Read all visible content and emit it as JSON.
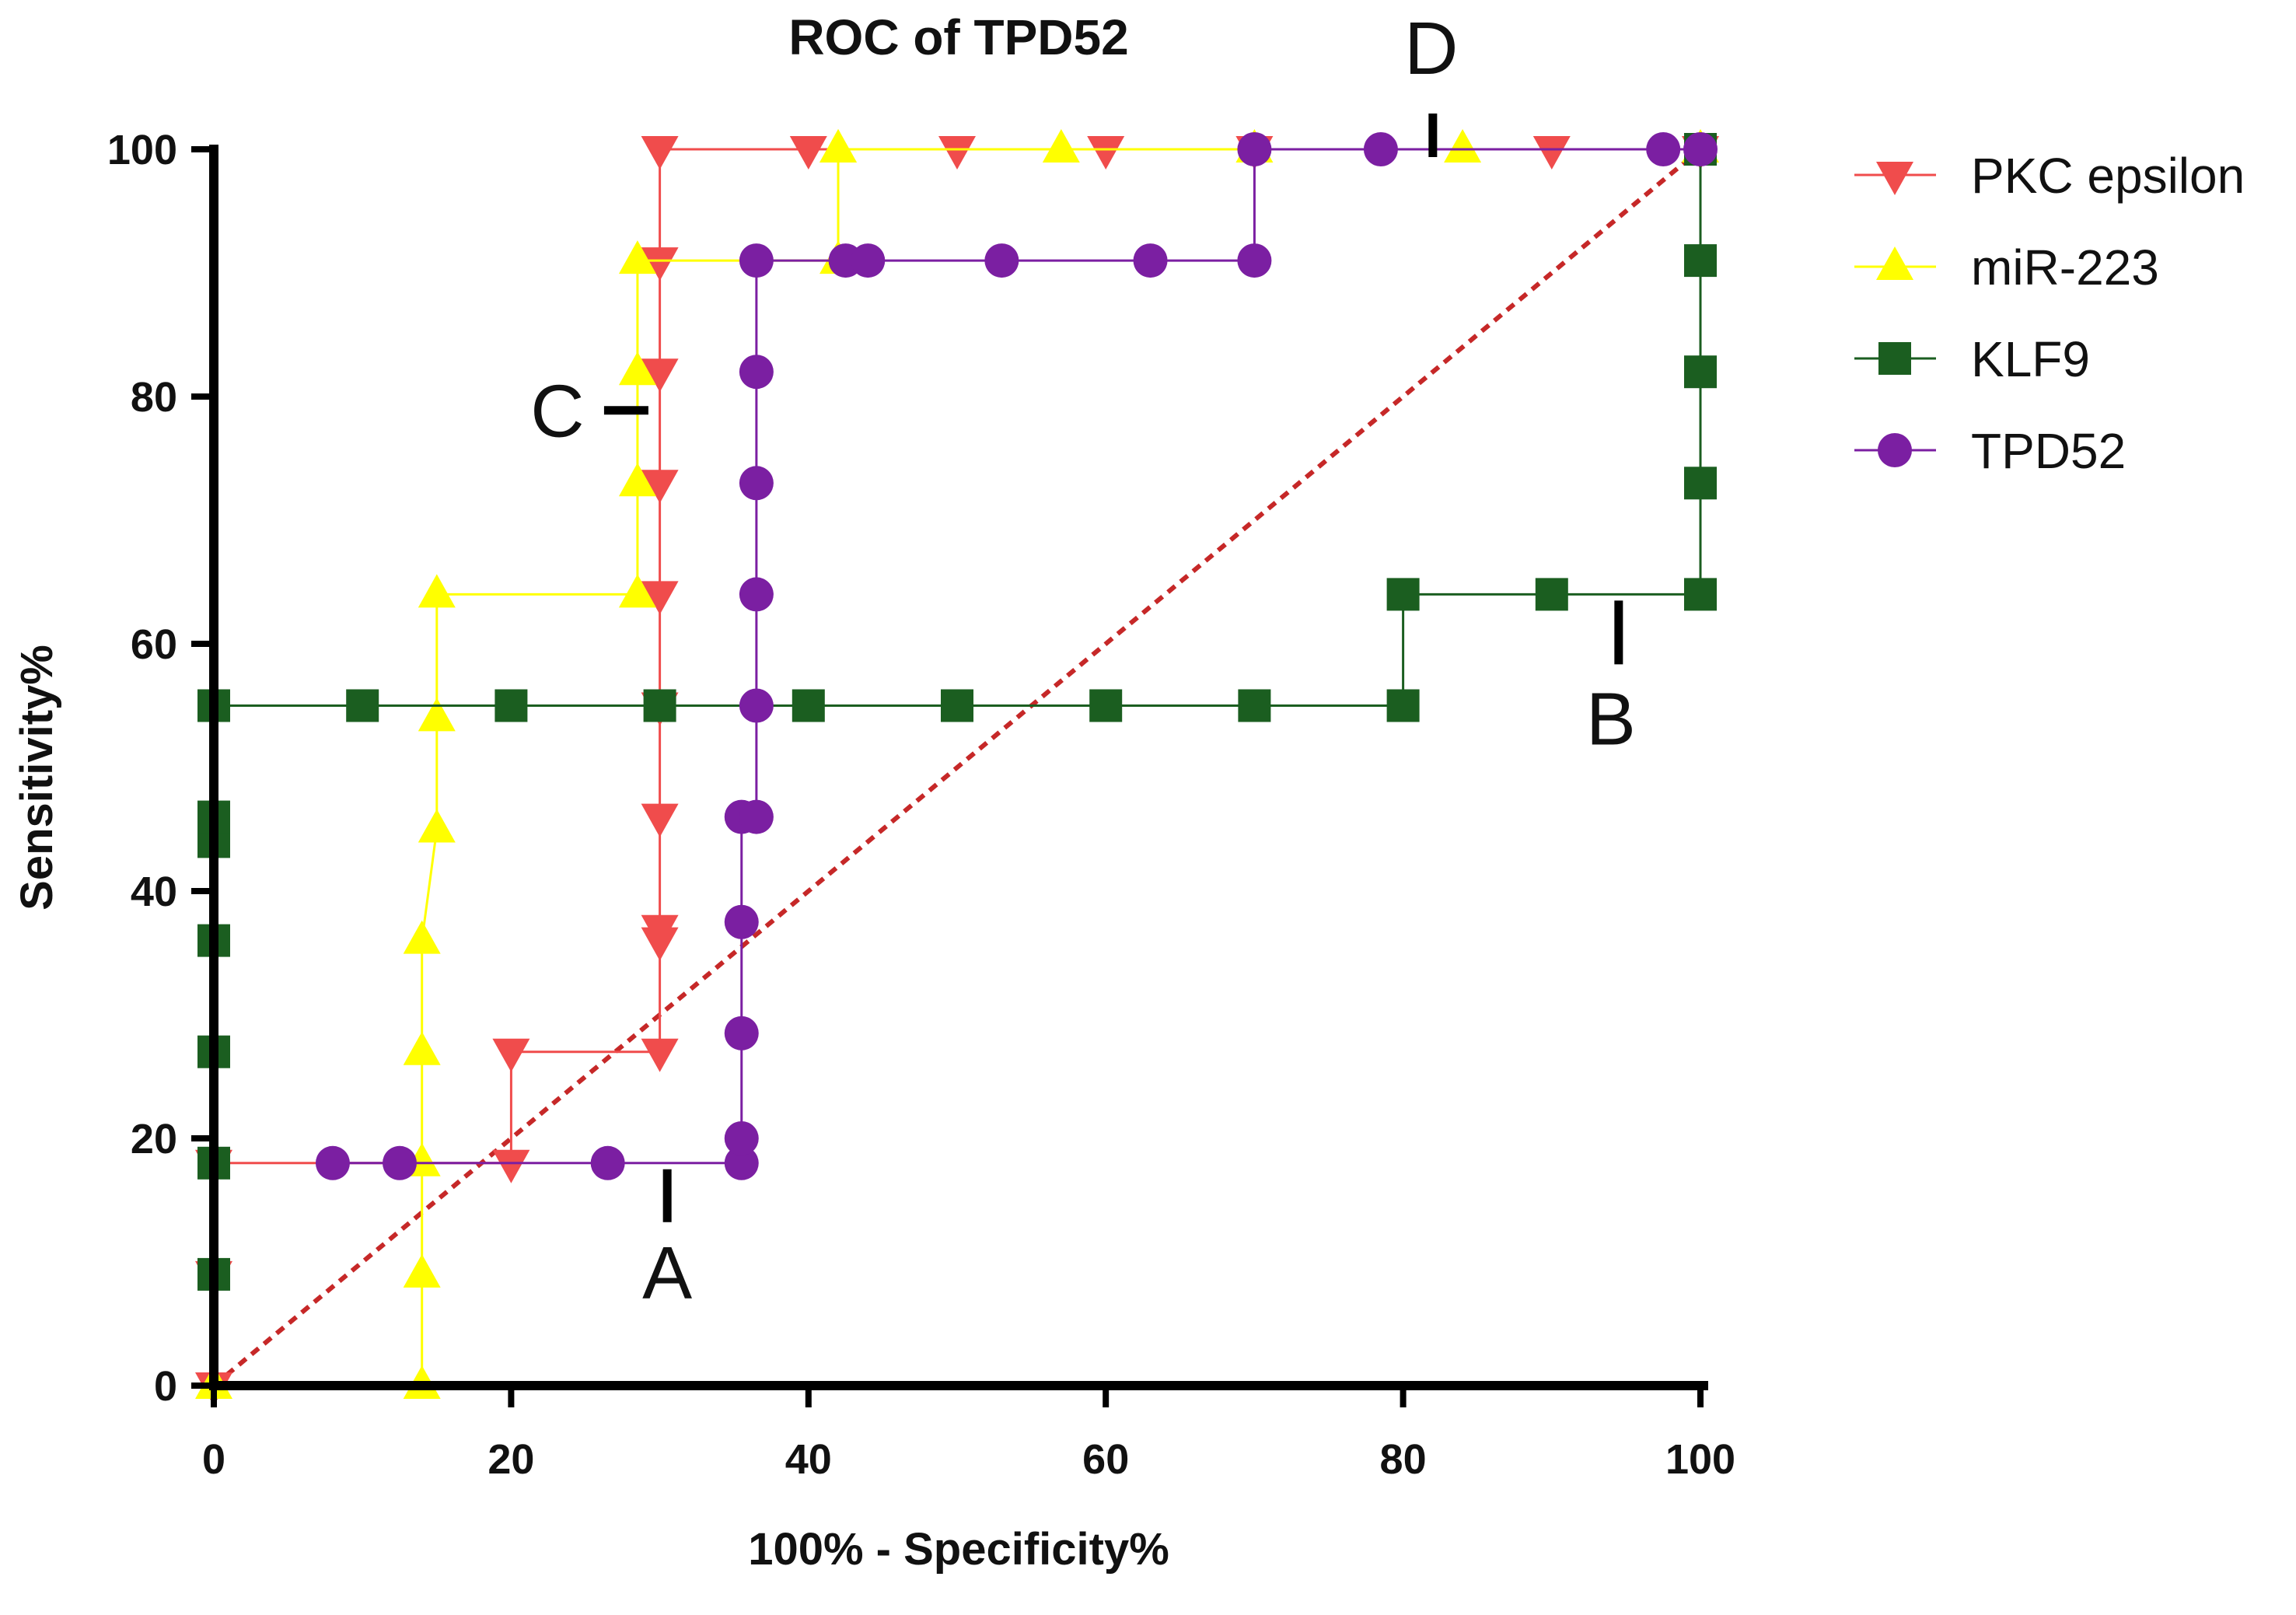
{
  "chart_data": {
    "type": "line",
    "title": "ROC of TPD52",
    "xlabel": "100% - Specificity%",
    "ylabel": "Sensitivity%",
    "xlim": [
      0,
      100
    ],
    "ylim": [
      0,
      100
    ],
    "xticks": [
      0,
      20,
      40,
      60,
      80,
      100
    ],
    "yticks": [
      0,
      20,
      40,
      60,
      80,
      100
    ],
    "grid": false,
    "legend_position": "right",
    "reference_line": {
      "name": "chance",
      "x": [
        0,
        100
      ],
      "y": [
        0,
        100
      ],
      "color": "#c62828",
      "style": "dashed"
    },
    "series": [
      {
        "name": "PKC epsilon",
        "marker": "triangle-down",
        "color": "#f04c4c",
        "x": [
          0,
          0,
          0,
          20,
          20,
          30,
          30,
          30,
          30,
          30,
          30,
          30,
          30,
          30,
          30,
          40,
          50,
          60,
          70,
          90,
          100
        ],
        "y": [
          0,
          9,
          18,
          18,
          27,
          27,
          36,
          37,
          46,
          55,
          64,
          73,
          82,
          91,
          100,
          100,
          100,
          100,
          100,
          100,
          100
        ]
      },
      {
        "name": "miR-223",
        "marker": "triangle-up",
        "color": "#ffff00",
        "x": [
          0,
          14,
          14,
          14,
          14,
          14,
          15,
          15,
          15,
          28.5,
          28.5,
          28.5,
          28.5,
          42,
          42,
          42,
          57,
          70,
          84,
          100
        ],
        "y": [
          0,
          0,
          9,
          18,
          27,
          36,
          45,
          54,
          64,
          64,
          73,
          82,
          91,
          91,
          100,
          100,
          100,
          100,
          100,
          100
        ]
      },
      {
        "name": "KLF9",
        "marker": "square",
        "color": "#1b5e20",
        "x": [
          0,
          0,
          0,
          0,
          0,
          0,
          0,
          10,
          20,
          30,
          40,
          50,
          60,
          70,
          80,
          80,
          90,
          100,
          100,
          100,
          100,
          100
        ],
        "y": [
          9,
          18,
          27,
          36,
          44,
          46,
          55,
          55,
          55,
          55,
          55,
          55,
          55,
          55,
          55,
          64,
          64,
          64,
          73,
          82,
          91,
          100
        ]
      },
      {
        "name": "TPD52",
        "marker": "circle",
        "color": "#7b1fa2",
        "x": [
          8,
          12.5,
          26.5,
          35.5,
          35.5,
          35.5,
          35.5,
          35.5,
          36.5,
          36.5,
          36.5,
          36.5,
          36.5,
          36.5,
          42.5,
          44,
          53,
          63,
          70,
          70,
          78.5,
          97.5,
          100
        ],
        "y": [
          18,
          18,
          18,
          18,
          20,
          28.5,
          37.5,
          46,
          46,
          55,
          64,
          73,
          82,
          91,
          91,
          91,
          91,
          91,
          91,
          100,
          100,
          100,
          100
        ]
      }
    ],
    "annotations": [
      {
        "label": "A",
        "x": 30.5,
        "y": 17.5
      },
      {
        "label": "B",
        "x": 94.5,
        "y": 63.5
      },
      {
        "label": "C",
        "x": 28.5,
        "y": 77
      },
      {
        "label": "D",
        "x": 82,
        "y": 100
      }
    ]
  }
}
